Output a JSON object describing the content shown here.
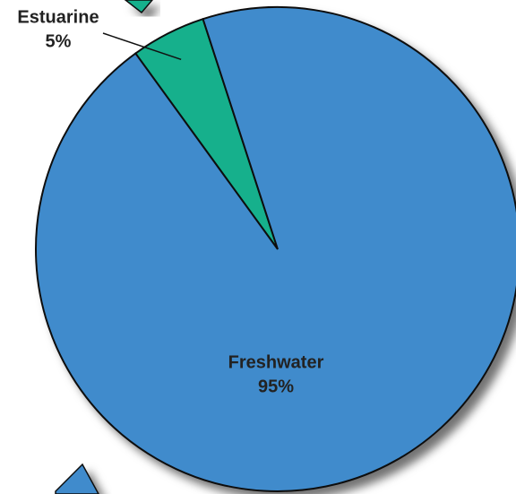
{
  "chart_data": {
    "type": "pie",
    "categories": [
      "Estuarine",
      "Freshwater"
    ],
    "values": [
      5,
      95
    ],
    "value_labels": [
      "5%",
      "95%"
    ],
    "colors": [
      "#12b08c",
      "#3f8bcc"
    ]
  }
}
